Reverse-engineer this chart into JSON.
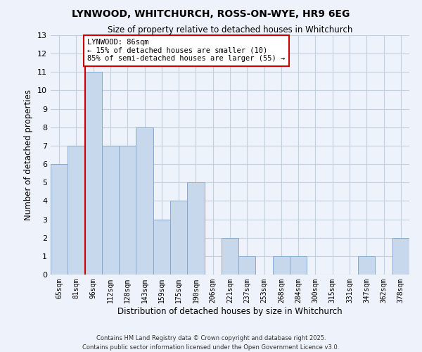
{
  "title": "LYNWOOD, WHITCHURCH, ROSS-ON-WYE, HR9 6EG",
  "subtitle": "Size of property relative to detached houses in Whitchurch",
  "xlabel": "Distribution of detached houses by size in Whitchurch",
  "ylabel": "Number of detached properties",
  "bar_color": "#c8d8ec",
  "bar_edge_color": "#88aacc",
  "categories": [
    "65sqm",
    "81sqm",
    "96sqm",
    "112sqm",
    "128sqm",
    "143sqm",
    "159sqm",
    "175sqm",
    "190sqm",
    "206sqm",
    "221sqm",
    "237sqm",
    "253sqm",
    "268sqm",
    "284sqm",
    "300sqm",
    "315sqm",
    "331sqm",
    "347sqm",
    "362sqm",
    "378sqm"
  ],
  "values": [
    6,
    7,
    11,
    7,
    7,
    8,
    3,
    4,
    5,
    0,
    2,
    1,
    0,
    1,
    1,
    0,
    0,
    0,
    1,
    0,
    2
  ],
  "ylim": [
    0,
    13
  ],
  "yticks": [
    0,
    1,
    2,
    3,
    4,
    5,
    6,
    7,
    8,
    9,
    10,
    11,
    12,
    13
  ],
  "property_line_color": "#cc0000",
  "property_line_x": 1.5,
  "annotation_text": "LYNWOOD: 86sqm\n← 15% of detached houses are smaller (10)\n85% of semi-detached houses are larger (55) →",
  "annotation_box_color": "#ffffff",
  "annotation_box_edge": "#cc0000",
  "grid_color": "#c4d0e0",
  "background_color": "#eef2fa",
  "footer": "Contains HM Land Registry data © Crown copyright and database right 2025.\nContains public sector information licensed under the Open Government Licence v3.0."
}
